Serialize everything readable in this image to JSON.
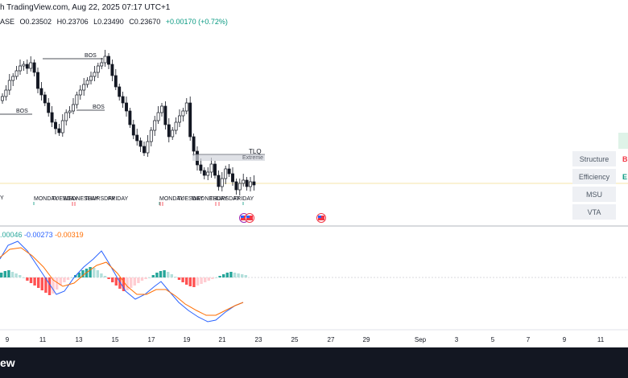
{
  "header": {
    "credit": "h TradingView.com, Aug 22, 2025 07:17 UTC+1"
  },
  "ohlc": {
    "prefix": "ASE",
    "open": "O0.23502",
    "high": "H0.23706",
    "low": "L0.23490",
    "close": "C0.23670",
    "change": "+0.00170 (+0.72%)"
  },
  "annotations": {
    "bos_labels": [
      "BOS",
      "BOS",
      "BOS"
    ],
    "tlq": "TLQ",
    "extreme": "Extreme",
    "days_week1": [
      "MONDAY",
      "TUESDAY",
      "WEDNESDAY",
      "THURSDAY",
      "FRIDAY"
    ],
    "days_week2": [
      "MONDAY",
      "TUESDAY",
      "WEDNESDAY",
      "THURSDAY",
      "FRIDAY"
    ],
    "left_edge_text": "Y"
  },
  "panel": {
    "items": [
      "Structure",
      "Efficiency",
      "MSU",
      "VTA"
    ],
    "structure_value": "B",
    "efficiency_value": "E"
  },
  "macd": {
    "hist": ".00046",
    "macd": "-0.00273",
    "signal": "-0.00319"
  },
  "x_axis": {
    "ticks": [
      "9",
      "11",
      "13",
      "15",
      "17",
      "19",
      "21",
      "23",
      "25",
      "27",
      "29",
      "Sep",
      "3",
      "5",
      "7",
      "9",
      "11"
    ]
  },
  "footer": {
    "logo_text": "ew"
  },
  "colors": {
    "up": "#089981",
    "down": "#f23645",
    "macd_line": "#2962ff",
    "signal_line": "#ff6d00",
    "hist_up": "#26a69a",
    "hist_up_light": "#b2dfdb",
    "hist_down": "#ff5252",
    "hist_down_light": "#ffcdd2",
    "panel_bg": "#eef0f4"
  },
  "icons": [
    "us-flag-event-icon",
    "us-flag-event-icon",
    "us-flag-event-icon"
  ]
}
